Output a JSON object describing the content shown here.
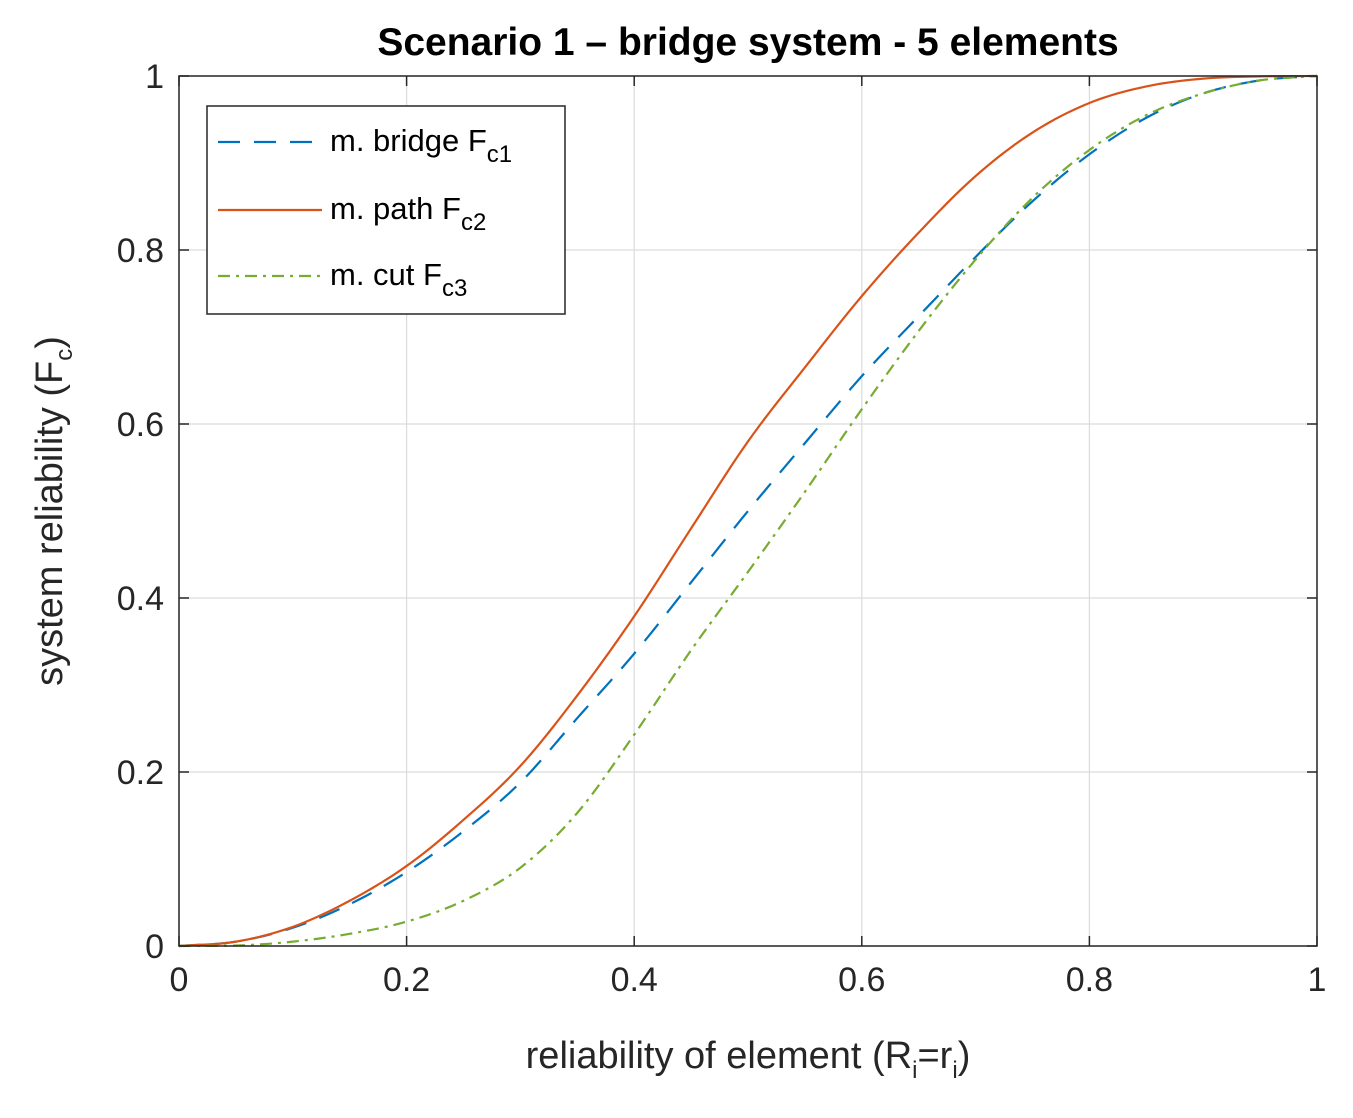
{
  "chart_data": {
    "type": "line",
    "title": "Scenario 1 – bridge system - 5 elements",
    "xlabel": {
      "main": "reliability of element (R",
      "sub1": "i",
      "mid": "=r",
      "sub2": "i",
      "end": ")"
    },
    "ylabel": {
      "main": "system reliability (F",
      "sub": "c",
      "end": ")"
    },
    "xlim": [
      0,
      1
    ],
    "ylim": [
      0,
      1
    ],
    "xticks": [
      0,
      0.2,
      0.4,
      0.6,
      0.8,
      1
    ],
    "yticks": [
      0,
      0.2,
      0.4,
      0.6,
      0.8,
      1
    ],
    "xtick_labels": [
      "0",
      "0.2",
      "0.4",
      "0.6",
      "0.8",
      "1"
    ],
    "ytick_labels": [
      "0",
      "0.2",
      "0.4",
      "0.6",
      "0.8",
      "1"
    ],
    "grid": true,
    "legend_position": "top-left",
    "x": [
      0,
      0.05,
      0.1,
      0.15,
      0.2,
      0.25,
      0.3,
      0.35,
      0.4,
      0.45,
      0.5,
      0.55,
      0.6,
      0.65,
      0.7,
      0.75,
      0.8,
      0.85,
      0.9,
      0.95,
      1
    ],
    "series": [
      {
        "label": "m. bridge F",
        "sub": "c1",
        "color": "#0072BD",
        "dash": "22,14",
        "values": [
          0,
          0.005,
          0.021,
          0.048,
          0.085,
          0.132,
          0.188,
          0.262,
          0.336,
          0.418,
          0.5,
          0.578,
          0.655,
          0.724,
          0.792,
          0.856,
          0.91,
          0.952,
          0.98,
          0.995,
          1
        ]
      },
      {
        "label": "m. path F",
        "sub": "c2",
        "color": "#D95319",
        "dash": "",
        "values": [
          0,
          0.005,
          0.022,
          0.052,
          0.092,
          0.145,
          0.207,
          0.288,
          0.379,
          0.48,
          0.58,
          0.665,
          0.747,
          0.82,
          0.885,
          0.935,
          0.969,
          0.988,
          0.997,
          0.9995,
          1
        ]
      },
      {
        "label": "m. cut F",
        "sub": "c3",
        "color": "#77AC30",
        "dash": "12,6,3,6",
        "values": [
          0,
          0.0006,
          0.005,
          0.014,
          0.028,
          0.052,
          0.09,
          0.153,
          0.243,
          0.34,
          0.43,
          0.522,
          0.617,
          0.707,
          0.789,
          0.86,
          0.915,
          0.955,
          0.98,
          0.995,
          1
        ]
      }
    ]
  }
}
